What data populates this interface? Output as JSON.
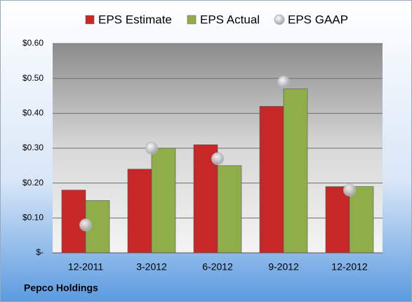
{
  "chart_data": {
    "type": "bar",
    "footer": "Pepco Holdings",
    "categories": [
      "12-2011",
      "3-2012",
      "6-2012",
      "9-2012",
      "12-2012"
    ],
    "series": [
      {
        "name": "EPS Estimate",
        "type": "bar",
        "color": "#c62828",
        "values": [
          0.18,
          0.24,
          0.31,
          0.42,
          0.19
        ]
      },
      {
        "name": "EPS Actual",
        "type": "bar",
        "color": "#8fae4a",
        "values": [
          0.15,
          0.3,
          0.25,
          0.47,
          0.19
        ]
      },
      {
        "name": "EPS GAAP",
        "type": "scatter",
        "color": "#b4b6bf",
        "values": [
          0.08,
          0.3,
          0.27,
          0.49,
          0.18
        ]
      }
    ],
    "ylim": [
      0,
      0.6
    ],
    "yticks": [
      {
        "value": 0,
        "label": "$-"
      },
      {
        "value": 0.1,
        "label": "$0.10"
      },
      {
        "value": 0.2,
        "label": "$0.20"
      },
      {
        "value": 0.3,
        "label": "$0.30"
      },
      {
        "value": 0.4,
        "label": "$0.40"
      },
      {
        "value": 0.5,
        "label": "$0.50"
      },
      {
        "value": 0.6,
        "label": "$0.60"
      }
    ],
    "grid": true,
    "legend": "top"
  }
}
